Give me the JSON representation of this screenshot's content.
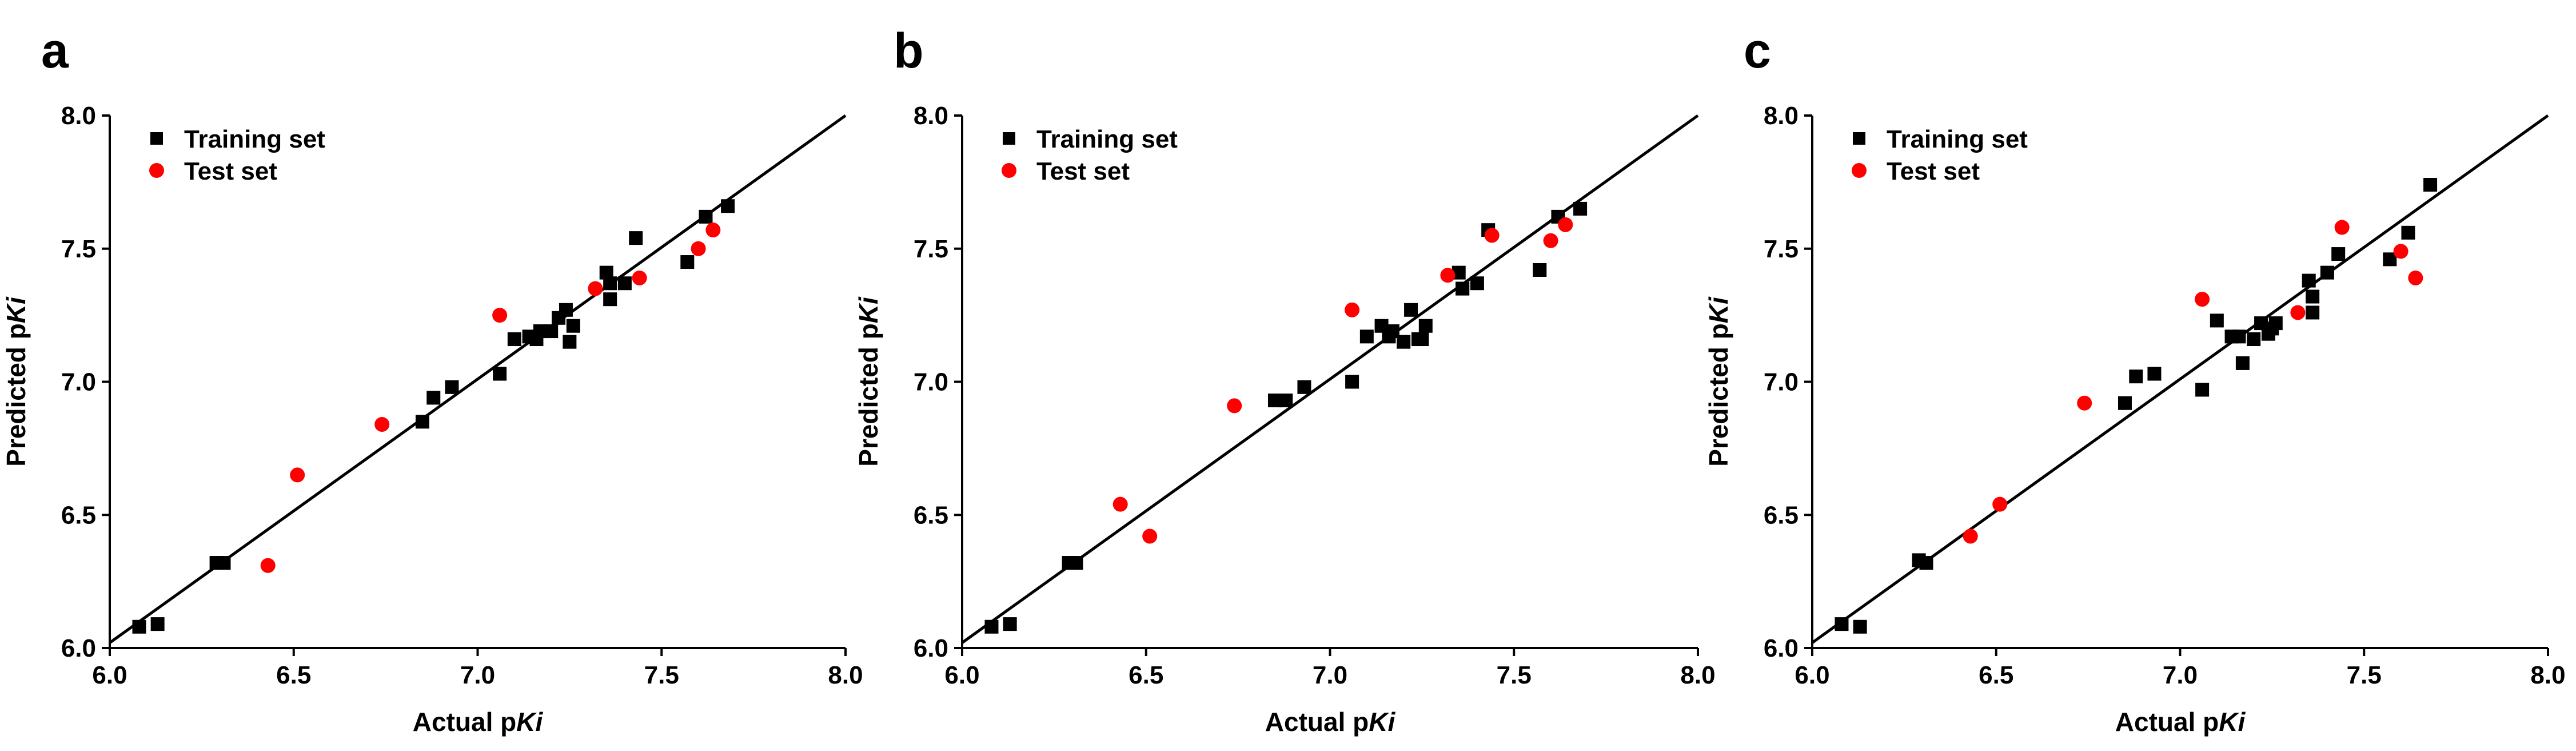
{
  "colors": {
    "training": "#000000",
    "test": "#ff0000",
    "line": "#000000"
  },
  "axis_labels": {
    "x_prefix": "Actual p",
    "x_italic": "Ki",
    "y_prefix": "Predicted p",
    "y_italic": "Ki"
  },
  "legend": {
    "training": "Training set",
    "test": "Test set"
  },
  "chart_data": [
    {
      "panel": "a",
      "type": "scatter",
      "xlabel": "Actual pKi",
      "ylabel": "Predicted pKi",
      "xlim": [
        6.0,
        8.0
      ],
      "ylim": [
        6.0,
        8.0
      ],
      "xticks": [
        "6.0",
        "6.5",
        "7.0",
        "7.5",
        "8.0"
      ],
      "yticks": [
        "6.0",
        "6.5",
        "7.0",
        "7.5",
        "8.0"
      ],
      "fit_line": [
        [
          6.0,
          6.02
        ],
        [
          8.0,
          8.0
        ]
      ],
      "series": [
        {
          "name": "Training set",
          "marker": "square",
          "color": "#000000",
          "points": [
            [
              6.08,
              6.08
            ],
            [
              6.13,
              6.09
            ],
            [
              6.29,
              6.32
            ],
            [
              6.31,
              6.32
            ],
            [
              6.85,
              6.85
            ],
            [
              6.88,
              6.94
            ],
            [
              6.93,
              6.98
            ],
            [
              7.06,
              7.03
            ],
            [
              7.1,
              7.16
            ],
            [
              7.14,
              7.17
            ],
            [
              7.16,
              7.16
            ],
            [
              7.17,
              7.19
            ],
            [
              7.2,
              7.19
            ],
            [
              7.22,
              7.24
            ],
            [
              7.24,
              7.27
            ],
            [
              7.25,
              7.15
            ],
            [
              7.26,
              7.21
            ],
            [
              7.35,
              7.41
            ],
            [
              7.36,
              7.37
            ],
            [
              7.36,
              7.31
            ],
            [
              7.4,
              7.37
            ],
            [
              7.43,
              7.54
            ],
            [
              7.57,
              7.45
            ],
            [
              7.62,
              7.62
            ],
            [
              7.68,
              7.66
            ]
          ]
        },
        {
          "name": "Test set",
          "marker": "circle",
          "color": "#ff0000",
          "points": [
            [
              6.43,
              6.31
            ],
            [
              6.51,
              6.65
            ],
            [
              6.74,
              6.84
            ],
            [
              7.06,
              7.25
            ],
            [
              7.32,
              7.35
            ],
            [
              7.44,
              7.39
            ],
            [
              7.6,
              7.5
            ],
            [
              7.64,
              7.57
            ]
          ]
        }
      ]
    },
    {
      "panel": "b",
      "type": "scatter",
      "xlabel": "Actual pKi",
      "ylabel": "Predicted pKi",
      "xlim": [
        6.0,
        8.0
      ],
      "ylim": [
        6.0,
        8.0
      ],
      "xticks": [
        "6.0",
        "6.5",
        "7.0",
        "7.5",
        "8.0"
      ],
      "yticks": [
        "6.0",
        "6.5",
        "7.0",
        "7.5",
        "8.0"
      ],
      "fit_line": [
        [
          6.0,
          6.02
        ],
        [
          8.0,
          8.0
        ]
      ],
      "series": [
        {
          "name": "Training set",
          "marker": "square",
          "color": "#000000",
          "points": [
            [
              6.08,
              6.08
            ],
            [
              6.13,
              6.09
            ],
            [
              6.29,
              6.32
            ],
            [
              6.31,
              6.32
            ],
            [
              6.85,
              6.93
            ],
            [
              6.88,
              6.93
            ],
            [
              6.93,
              6.98
            ],
            [
              7.06,
              7.0
            ],
            [
              7.1,
              7.17
            ],
            [
              7.14,
              7.21
            ],
            [
              7.16,
              7.17
            ],
            [
              7.17,
              7.19
            ],
            [
              7.2,
              7.15
            ],
            [
              7.22,
              7.27
            ],
            [
              7.24,
              7.16
            ],
            [
              7.25,
              7.16
            ],
            [
              7.26,
              7.21
            ],
            [
              7.35,
              7.41
            ],
            [
              7.36,
              7.35
            ],
            [
              7.36,
              7.35
            ],
            [
              7.4,
              7.37
            ],
            [
              7.43,
              7.57
            ],
            [
              7.57,
              7.42
            ],
            [
              7.62,
              7.62
            ],
            [
              7.68,
              7.65
            ]
          ]
        },
        {
          "name": "Test set",
          "marker": "circle",
          "color": "#ff0000",
          "points": [
            [
              6.43,
              6.54
            ],
            [
              6.51,
              6.42
            ],
            [
              6.74,
              6.91
            ],
            [
              7.06,
              7.27
            ],
            [
              7.32,
              7.4
            ],
            [
              7.44,
              7.55
            ],
            [
              7.6,
              7.53
            ],
            [
              7.64,
              7.59
            ]
          ]
        }
      ]
    },
    {
      "panel": "c",
      "type": "scatter",
      "xlabel": "Actual pKi",
      "ylabel": "Predicted pKi",
      "xlim": [
        6.0,
        8.0
      ],
      "ylim": [
        6.0,
        8.0
      ],
      "xticks": [
        "6.0",
        "6.5",
        "7.0",
        "7.5",
        "8.0"
      ],
      "yticks": [
        "6.0",
        "6.5",
        "7.0",
        "7.5",
        "8.0"
      ],
      "fit_line": [
        [
          6.0,
          6.02
        ],
        [
          8.0,
          8.0
        ]
      ],
      "series": [
        {
          "name": "Training set",
          "marker": "square",
          "color": "#000000",
          "points": [
            [
              6.08,
              6.09
            ],
            [
              6.13,
              6.08
            ],
            [
              6.29,
              6.33
            ],
            [
              6.31,
              6.32
            ],
            [
              6.85,
              6.92
            ],
            [
              6.88,
              7.02
            ],
            [
              6.93,
              7.03
            ],
            [
              7.06,
              6.97
            ],
            [
              7.1,
              7.23
            ],
            [
              7.14,
              7.17
            ],
            [
              7.16,
              7.17
            ],
            [
              7.17,
              7.07
            ],
            [
              7.2,
              7.16
            ],
            [
              7.22,
              7.22
            ],
            [
              7.24,
              7.18
            ],
            [
              7.25,
              7.2
            ],
            [
              7.26,
              7.22
            ],
            [
              7.35,
              7.38
            ],
            [
              7.36,
              7.26
            ],
            [
              7.36,
              7.32
            ],
            [
              7.4,
              7.41
            ],
            [
              7.43,
              7.48
            ],
            [
              7.57,
              7.46
            ],
            [
              7.62,
              7.56
            ],
            [
              7.68,
              7.74
            ]
          ]
        },
        {
          "name": "Test set",
          "marker": "circle",
          "color": "#ff0000",
          "points": [
            [
              6.43,
              6.42
            ],
            [
              6.51,
              6.54
            ],
            [
              6.74,
              6.92
            ],
            [
              7.06,
              7.31
            ],
            [
              7.32,
              7.26
            ],
            [
              7.44,
              7.58
            ],
            [
              7.6,
              7.49
            ],
            [
              7.64,
              7.39
            ]
          ]
        }
      ]
    }
  ]
}
